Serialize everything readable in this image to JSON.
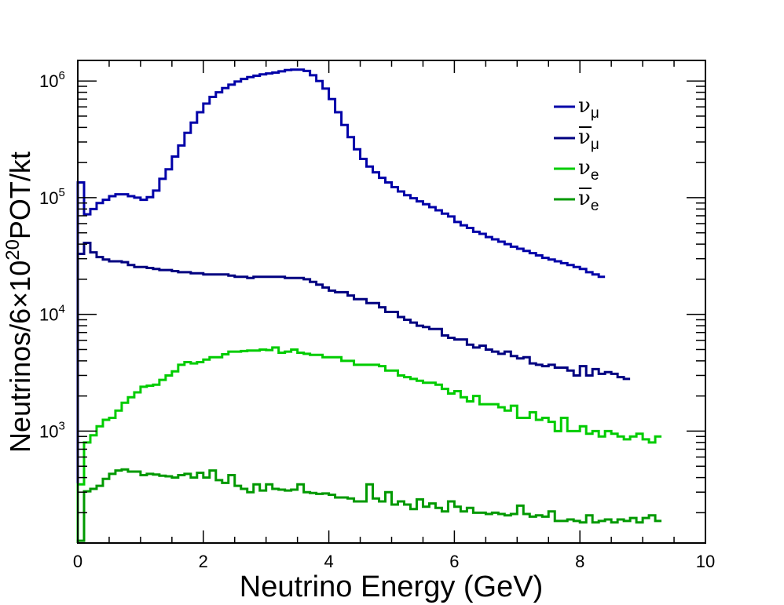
{
  "chart_data": {
    "type": "line",
    "title": "",
    "xlabel": "Neutrino Energy (GeV)",
    "ylabel": {
      "prefix": "Neutrinos/6×10",
      "superscript": "20",
      "suffix": "POT/kt"
    },
    "xlim": [
      0,
      10
    ],
    "ylim": [
      110,
      1500000
    ],
    "yscale": "log",
    "grid": false,
    "legend_position": "top-right",
    "x_ticks": [
      "0",
      "2",
      "4",
      "6",
      "8",
      "10"
    ],
    "y_ticks": [
      {
        "base": "10",
        "exp": "3",
        "value": 1000
      },
      {
        "base": "10",
        "exp": "4",
        "value": 10000
      },
      {
        "base": "10",
        "exp": "5",
        "value": 100000
      },
      {
        "base": "10",
        "exp": "6",
        "value": 1000000
      }
    ],
    "bin_width": 0.1,
    "series": [
      {
        "name": "νμ",
        "symbol": "ν",
        "bar": false,
        "subscript": "μ",
        "color": "#0000a8",
        "values": [
          135000,
          72000,
          80000,
          90000,
          96000,
          103000,
          107000,
          107000,
          103000,
          100000,
          96000,
          101000,
          115000,
          145000,
          175000,
          225000,
          280000,
          360000,
          440000,
          540000,
          640000,
          730000,
          800000,
          870000,
          930000,
          990000,
          1040000,
          1080000,
          1110000,
          1140000,
          1160000,
          1180000,
          1210000,
          1240000,
          1250000,
          1250000,
          1220000,
          1120000,
          1000000,
          860000,
          700000,
          540000,
          420000,
          330000,
          260000,
          215000,
          185000,
          165000,
          148000,
          135000,
          123000,
          113000,
          105000,
          99000,
          93000,
          88000,
          83000,
          78000,
          73000,
          69000,
          62000,
          58000,
          55000,
          51000,
          49000,
          46000,
          44000,
          42000,
          40000,
          38000,
          36500,
          35000,
          33500,
          32000,
          30500,
          29500,
          28500,
          27500,
          26500,
          25500,
          24500,
          23000,
          22000,
          21000
        ]
      },
      {
        "name": "ν̄μ",
        "symbol": "ν",
        "bar": true,
        "subscript": "μ",
        "color": "#000080",
        "values": [
          33000,
          41000,
          34000,
          31000,
          29500,
          28500,
          28500,
          28000,
          26500,
          25500,
          25500,
          25000,
          24500,
          24000,
          24000,
          23500,
          23000,
          23000,
          22500,
          22500,
          22000,
          22000,
          22000,
          22000,
          21500,
          21000,
          21000,
          20500,
          21000,
          21000,
          21000,
          21000,
          21000,
          20500,
          20500,
          20500,
          20000,
          19000,
          18000,
          17000,
          16000,
          15500,
          15500,
          14500,
          13500,
          13500,
          12500,
          12500,
          11500,
          10500,
          10500,
          9500,
          9000,
          8500,
          8000,
          7800,
          7500,
          7500,
          6600,
          6300,
          6100,
          6100,
          5500,
          5200,
          5400,
          5000,
          4800,
          4600,
          4800,
          4400,
          4200,
          4300,
          3800,
          3700,
          3600,
          3700,
          3500,
          3500,
          3300,
          3000,
          3600,
          3000,
          3400,
          3100,
          3200,
          3100,
          2900,
          2800
        ]
      },
      {
        "name": "νe",
        "symbol": "ν",
        "bar": false,
        "subscript": "e",
        "color": "#00cc00",
        "values": [
          350,
          800,
          920,
          1100,
          1250,
          1300,
          1500,
          1750,
          1950,
          2150,
          2400,
          2450,
          2500,
          2750,
          3000,
          3250,
          3700,
          3900,
          3800,
          3900,
          4100,
          4300,
          4300,
          4550,
          4800,
          4800,
          4850,
          4900,
          4900,
          5000,
          4950,
          5200,
          4700,
          4800,
          5000,
          4700,
          4600,
          4500,
          4500,
          4300,
          4300,
          4300,
          4000,
          4000,
          3700,
          3700,
          3700,
          3700,
          3600,
          3300,
          3300,
          3000,
          2900,
          2800,
          2700,
          2600,
          2600,
          2500,
          2300,
          2100,
          2200,
          1950,
          1800,
          2000,
          1700,
          1700,
          1700,
          1600,
          1500,
          1650,
          1300,
          1300,
          1450,
          1250,
          1300,
          1200,
          1000,
          1300,
          1000,
          1000,
          1100,
          950,
          1000,
          900,
          1000,
          950,
          900,
          850,
          900,
          950,
          850,
          800,
          900
        ]
      },
      {
        "name": "ν̄e",
        "symbol": "ν",
        "bar": true,
        "subscript": "e",
        "color": "#009900",
        "values": [
          115,
          305,
          320,
          340,
          390,
          430,
          460,
          470,
          450,
          450,
          420,
          430,
          425,
          415,
          410,
          400,
          420,
          430,
          400,
          440,
          400,
          460,
          380,
          360,
          420,
          340,
          320,
          300,
          350,
          310,
          350,
          320,
          315,
          310,
          315,
          350,
          300,
          295,
          290,
          292,
          285,
          270,
          270,
          265,
          250,
          250,
          350,
          265,
          250,
          300,
          235,
          250,
          235,
          215,
          260,
          225,
          240,
          220,
          205,
          250,
          225,
          205,
          220,
          200,
          200,
          195,
          200,
          195,
          190,
          195,
          230,
          195,
          185,
          190,
          185,
          205,
          170,
          170,
          175,
          170,
          165,
          190,
          165,
          170,
          175,
          165,
          175,
          170,
          180,
          165,
          180,
          190,
          170
        ]
      }
    ]
  }
}
